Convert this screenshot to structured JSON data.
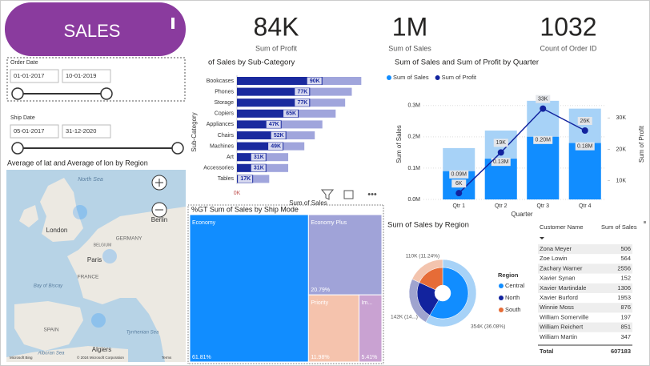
{
  "header": {
    "title": "SALES"
  },
  "cards": [
    {
      "value": "84K",
      "label": "Sum of Profit"
    },
    {
      "value": "1M",
      "label": "Sum of Sales"
    },
    {
      "value": "1032",
      "label": "Count of Order ID"
    }
  ],
  "slicers": [
    {
      "title": "Order Date",
      "start": "01-01-2017",
      "end": "10-01-2019"
    },
    {
      "title": "Ship Date",
      "start": "05-01-2017",
      "end": "31-12-2020"
    }
  ],
  "map": {
    "title": "Average of lat and Average of lon by Region",
    "places": [
      "North Sea",
      "London",
      "Berlin",
      "Paris",
      "GERMANY",
      "FRANCE",
      "BELGIUM",
      "Bay of Biscay",
      "SPAIN",
      "Algiers",
      "Tyrrhenian Sea",
      "Alboran Sea"
    ],
    "attribution": "© 2024 Microsoft Corporation",
    "terms": "Terms",
    "brand": "Microsoft Bing"
  },
  "chart_data": [
    {
      "type": "hbar",
      "title": "of Sales by Sub-Category",
      "y_label": "Sub-Category",
      "x_label": "Sum of Sales",
      "categories": [
        "Bookcases",
        "Phones",
        "Storage",
        "Copiers",
        "Appliances",
        "Chairs",
        "Machines",
        "Art",
        "Accessories",
        "Tables"
      ],
      "series": [
        {
          "color": "#a0a5dc",
          "values": [
            131000,
            121000,
            114000,
            104000,
            90000,
            82000,
            71000,
            54000,
            54000,
            34000
          ]
        },
        {
          "color": "#1a2a9e",
          "values": [
            90000,
            77000,
            77000,
            65000,
            47000,
            52000,
            49000,
            31000,
            31000,
            17000
          ],
          "value_labels": [
            "90K",
            "77K",
            "77K",
            "65K",
            "47K",
            "52K",
            "49K",
            "31K",
            "31K",
            "17K"
          ]
        }
      ],
      "xlim": [
        0,
        140000
      ],
      "xticks": [
        {
          "value": 0,
          "label": "0K"
        }
      ]
    },
    {
      "type": "combo",
      "title": "Sum of Sales and Sum of Profit by Quarter",
      "x_label": "Quarter",
      "y_label": "Sum of Sales",
      "y2_label": "Sum of Profit",
      "categories": [
        "Qtr 1",
        "Qtr 2",
        "Qtr 3",
        "Qtr 4"
      ],
      "series": [
        {
          "color": "#a7d2f7",
          "values": [
            164000,
            220000,
            315000,
            290000
          ]
        },
        {
          "name": "Sum of Sales",
          "color": "#118dff",
          "values": [
            90000,
            130000,
            200000,
            180000
          ],
          "value_labels": [
            "0.09M",
            "0.13M",
            "0.20M",
            "0.18M"
          ]
        },
        {
          "name": "Sum of Profit",
          "color": "#12239e",
          "axis": "y2",
          "values": [
            6000,
            19000,
            33000,
            26000
          ],
          "value_labels": [
            "6K",
            "19K",
            "33K",
            "26K"
          ]
        }
      ],
      "ylim": [
        0,
        330000
      ],
      "yticks": [
        {
          "value": 0,
          "label": "0.0M"
        },
        {
          "value": 100000,
          "label": "0.1M"
        },
        {
          "value": 200000,
          "label": "0.2M"
        },
        {
          "value": 300000,
          "label": "0.3M"
        }
      ],
      "y2lim": [
        4000,
        37000
      ],
      "y2ticks": [
        {
          "value": 10000,
          "label": "10K"
        },
        {
          "value": 20000,
          "label": "20K"
        },
        {
          "value": 30000,
          "label": "30K"
        }
      ],
      "grid": true
    },
    {
      "type": "treemap",
      "title": "%GT Sum of Sales by Ship Mode",
      "categories": [
        "Economy",
        "Economy Plus",
        "Priority",
        "Im..."
      ],
      "values": [
        61.81,
        20.79,
        11.98,
        5.41
      ],
      "value_labels": [
        "61.81%",
        "20.79%",
        "11.98%",
        "5.41%"
      ],
      "colors": [
        "#118dff",
        "#a0a3d8",
        "#f5c3ad",
        "#c9a2d2"
      ]
    },
    {
      "type": "donut",
      "title": "Sum of Sales by Region",
      "legend_title": "Region",
      "categories": [
        "Central",
        "North",
        "South"
      ],
      "values": [
        354000,
        142000,
        110000
      ],
      "value_labels": [
        "354K (36.08%)",
        "142K (14...)",
        "110K (11.24%)"
      ],
      "colors": [
        "#118dff",
        "#12239e",
        "#e66c37"
      ],
      "outer_colors": [
        "#a7d2f7",
        "#9fa4cf",
        "#f3c4ae"
      ]
    }
  ],
  "table": {
    "columns": [
      "Customer Name",
      "Sum of Sales"
    ],
    "rows": [
      [
        "Zona Meyer",
        506
      ],
      [
        "Zoe Lowin",
        564
      ],
      [
        "Zachary Warner",
        2556
      ],
      [
        "Xavier Synan",
        152
      ],
      [
        "Xavier Martindale",
        1306
      ],
      [
        "Xavier Burford",
        1953
      ],
      [
        "Winnie Moss",
        876
      ],
      [
        "William Somerville",
        197
      ],
      [
        "William Reichert",
        851
      ],
      [
        "William Martin",
        347
      ]
    ],
    "total": [
      "Total",
      607183
    ]
  }
}
